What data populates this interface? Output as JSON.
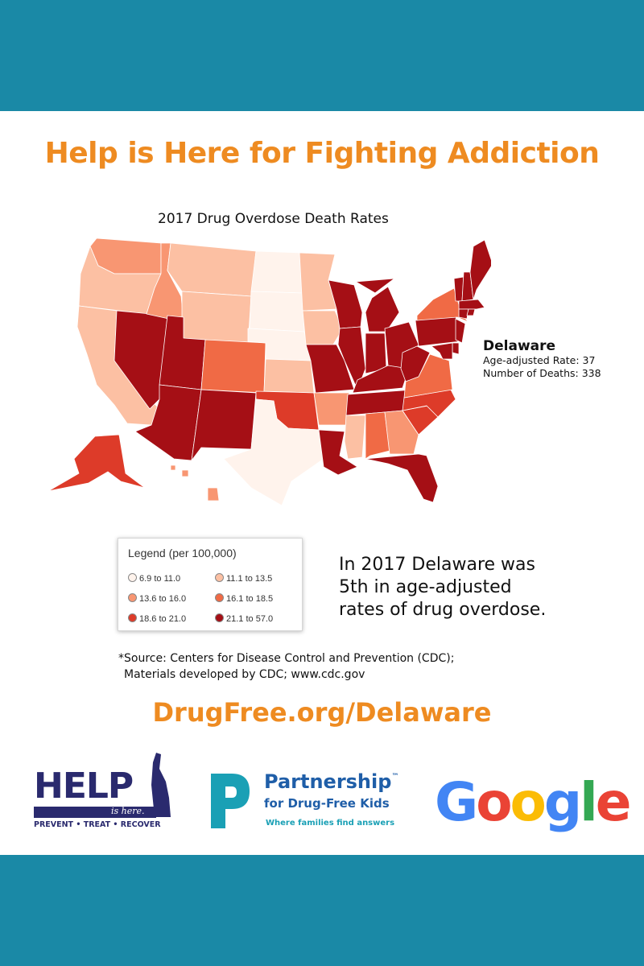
{
  "colors": {
    "band": "#1a89a6",
    "accent_orange": "#ee8b21",
    "help_navy": "#2a2a6e",
    "pdfk_teal": "#1aa0b5",
    "pdfk_blue": "#1f5ea8",
    "google": [
      "#4285F4",
      "#EA4335",
      "#FBBC05",
      "#4285F4",
      "#34A853",
      "#EA4335"
    ]
  },
  "headline": "Help is Here for Fighting Addiction",
  "map": {
    "title": "2017 Drug Overdose Death Rates",
    "bins": [
      {
        "label": "6.9 to 11.0",
        "color": "#fff3ec"
      },
      {
        "label": "11.1 to 13.5",
        "color": "#fcc0a3"
      },
      {
        "label": "13.6 to 16.0",
        "color": "#f89672"
      },
      {
        "label": "16.1 to 18.5",
        "color": "#f06a45"
      },
      {
        "label": "18.6 to 21.0",
        "color": "#dd3b29"
      },
      {
        "label": "21.1 to 57.0",
        "color": "#a50f15"
      }
    ],
    "state_bins": {
      "WA": 2,
      "OR": 1,
      "CA": 1,
      "NV": 5,
      "ID": 2,
      "MT": 1,
      "WY": 1,
      "UT": 5,
      "AZ": 5,
      "CO": 3,
      "NM": 5,
      "ND": 0,
      "SD": 0,
      "NE": 0,
      "KS": 1,
      "OK": 4,
      "TX": 0,
      "MN": 1,
      "IA": 1,
      "MO": 5,
      "AR": 2,
      "LA": 5,
      "WI": 5,
      "IL": 5,
      "MS": 1,
      "MI": 5,
      "IN": 5,
      "KY": 5,
      "TN": 5,
      "AL": 3,
      "OH": 5,
      "WV": 5,
      "GA": 2,
      "FL": 5,
      "SC": 4,
      "NC": 4,
      "VA": 3,
      "PA": 5,
      "NY": 3,
      "ME": 5,
      "VT": 5,
      "NH": 5,
      "MA": 5,
      "CT": 5,
      "RI": 5,
      "NJ": 5,
      "DE": 5,
      "MD": 5,
      "AK": 4,
      "HI": 2
    },
    "callout": {
      "state": "Delaware",
      "rate_line": "Age-adjusted Rate: 37",
      "deaths_line": "Number of Deaths: 338"
    }
  },
  "legend": {
    "title": "Legend  (per 100,000)"
  },
  "fact": {
    "line1": "In 2017 Delaware was",
    "line2": "5th in age-adjusted",
    "line3": "rates of drug overdose."
  },
  "source": {
    "line1": "*Source: Centers for Disease Control and Prevention (CDC);",
    "line2": "Materials developed by CDC; www.cdc.gov"
  },
  "site_url": "DrugFree.org/Delaware",
  "logos": {
    "help": {
      "word": "HELP",
      "sub": "is here.",
      "tag": "PREVENT • TREAT • RECOVER"
    },
    "pdfk": {
      "line1": "Partnership",
      "tm": "™",
      "line2": "for Drug-Free Kids",
      "line3": "Where families find answers"
    },
    "google": {
      "letters": [
        "G",
        "o",
        "o",
        "g",
        "l",
        "e"
      ]
    }
  }
}
